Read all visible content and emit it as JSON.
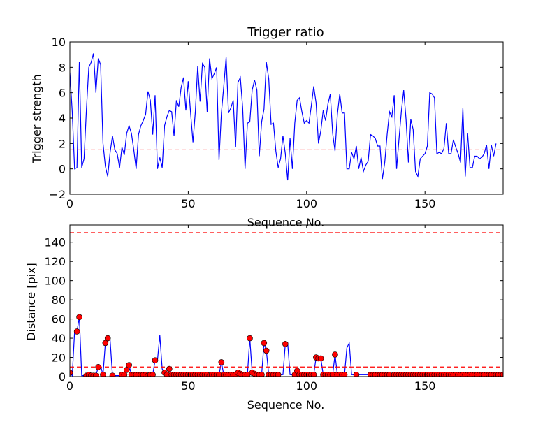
{
  "chart_data": [
    {
      "type": "line",
      "title": "Trigger ratio",
      "xlabel": "Sequence No.",
      "ylabel": "Trigger strength",
      "xlim": [
        0,
        183
      ],
      "ylim": [
        -2,
        10
      ],
      "xticks": [
        0,
        50,
        100,
        150
      ],
      "yticks": [
        -2,
        0,
        2,
        4,
        6,
        8,
        10
      ],
      "line_color": "#0000ff",
      "threshold": {
        "value": 1.5,
        "color": "#ff0000",
        "style": "dashed"
      },
      "x_start": 0,
      "values": [
        7.6,
        4.5,
        0,
        0.1,
        8.4,
        0.1,
        0.8,
        4.7,
        8,
        8.4,
        9.1,
        6,
        8.7,
        8.2,
        2,
        0.2,
        -0.6,
        1.3,
        2.6,
        1.5,
        1.2,
        0.1,
        1.7,
        1.1,
        2.8,
        3.4,
        2.8,
        1.5,
        0,
        2.7,
        3.4,
        3.8,
        4.3,
        6.1,
        5.4,
        2.7,
        5.8,
        0,
        0.9,
        0.1,
        3.4,
        4.1,
        4.6,
        4.5,
        2.6,
        5.4,
        4.9,
        6.4,
        7.2,
        4.6,
        6.9,
        4.4,
        2.1,
        4.5,
        8.1,
        5.3,
        8.3,
        8,
        4.5,
        8.7,
        7.1,
        7.5,
        8,
        0.7,
        4.4,
        6.5,
        8.8,
        4.4,
        4.8,
        5.4,
        1.7,
        6.8,
        7.2,
        4.8,
        0,
        3.6,
        3.7,
        6.2,
        7,
        6.2,
        1,
        3.7,
        4.7,
        8.4,
        7.1,
        3.5,
        3.6,
        1.4,
        0.1,
        0.8,
        2.6,
        1.2,
        -0.9,
        2.4,
        0,
        3.6,
        5.4,
        5.6,
        4.5,
        3.6,
        3.8,
        3.6,
        5,
        6.5,
        5.2,
        2,
        3,
        4.6,
        3.8,
        5.1,
        5.9,
        2.8,
        1.4,
        4.3,
        5.9,
        4.4,
        4.4,
        0,
        0,
        1.3,
        0.8,
        1.8,
        0,
        0.9,
        -0.2,
        0.3,
        0.6,
        2.7,
        2.6,
        2.4,
        1.8,
        1.8,
        -0.8,
        0.5,
        2.7,
        4.5,
        4.1,
        5.8,
        0,
        2.3,
        4.5,
        6.2,
        3.9,
        0.5,
        3.9,
        3.1,
        -0.2,
        -0.6,
        0.8,
        1,
        1.2,
        1.8,
        6,
        5.9,
        5.6,
        1.2,
        1.3,
        1.2,
        1.6,
        3.6,
        1.2,
        1.2,
        2.3,
        1.7,
        1.2,
        0.5,
        4.8,
        -0.6,
        2.8,
        0.1,
        0.1,
        1,
        1,
        0.8,
        0.9,
        1.2,
        1.9,
        0,
        1.9,
        1,
        2
      ]
    },
    {
      "type": "line",
      "xlabel": "Sequence No.",
      "ylabel": "Distance [pix]",
      "xlim": [
        0,
        183
      ],
      "ylim": [
        0,
        158
      ],
      "xticks": [
        0,
        50,
        100,
        150
      ],
      "yticks": [
        0,
        20,
        40,
        60,
        80,
        100,
        120,
        140
      ],
      "line_color": "#0000ff",
      "marker_color": "#ff0000",
      "thresholds": [
        {
          "value": 10,
          "color": "#ff0000",
          "style": "dashed"
        },
        {
          "value": 150,
          "color": "#ff0000",
          "style": "dashed"
        }
      ],
      "x_start": 0,
      "values": [
        4,
        1,
        47,
        47,
        62,
        1,
        1,
        1,
        2,
        1,
        1,
        1,
        10,
        11,
        2,
        35,
        40,
        38,
        1,
        1,
        1,
        1,
        2,
        2,
        7,
        12,
        2,
        2,
        2,
        2,
        2,
        2,
        2,
        1,
        2,
        2,
        17,
        17,
        43,
        8,
        4,
        2,
        8,
        2,
        2,
        2,
        2,
        2,
        2,
        2,
        2,
        2,
        2,
        2,
        2,
        2,
        2,
        2,
        2,
        1,
        2,
        2,
        2,
        2,
        15,
        2,
        2,
        2,
        2,
        2,
        2,
        4,
        3,
        2,
        2,
        2,
        40,
        4,
        3,
        2,
        2,
        2,
        35,
        27,
        2,
        2,
        2,
        2,
        2,
        2,
        2,
        34,
        35,
        2,
        2,
        2,
        6,
        2,
        2,
        2,
        2,
        2,
        2,
        2,
        20,
        19,
        19,
        2,
        2,
        2,
        2,
        2,
        23,
        2,
        2,
        2,
        2,
        30,
        35,
        2,
        2,
        2,
        2,
        2,
        2,
        2,
        2,
        2,
        2,
        2,
        2,
        2,
        2,
        2,
        2,
        2,
        2,
        2,
        2,
        2,
        2,
        2,
        2,
        2,
        2,
        2,
        2,
        2,
        2,
        2,
        2,
        2,
        2,
        2,
        2,
        2,
        2,
        2,
        2,
        2,
        2,
        2,
        2,
        2,
        2,
        2,
        2,
        2,
        2,
        2,
        2,
        2,
        2,
        2,
        2,
        2,
        2,
        2,
        2,
        2,
        2,
        2,
        2,
        2
      ],
      "marker_indices": [
        0,
        3,
        4,
        7,
        8,
        9,
        10,
        11,
        12,
        14,
        15,
        16,
        18,
        22,
        23,
        24,
        25,
        26,
        27,
        28,
        29,
        30,
        31,
        32,
        33,
        34,
        35,
        36,
        40,
        41,
        42,
        43,
        44,
        45,
        46,
        47,
        48,
        49,
        50,
        51,
        52,
        53,
        54,
        55,
        56,
        57,
        58,
        59,
        60,
        61,
        62,
        63,
        64,
        65,
        66,
        67,
        68,
        69,
        70,
        71,
        72,
        73,
        74,
        75,
        76,
        77,
        78,
        79,
        80,
        81,
        82,
        83,
        84,
        85,
        86,
        87,
        88,
        91,
        95,
        96,
        97,
        98,
        99,
        100,
        101,
        102,
        103,
        104,
        105,
        106,
        107,
        108,
        109,
        110,
        111,
        112,
        113,
        114,
        115,
        116,
        121,
        127,
        128,
        129,
        130,
        131,
        132,
        133,
        134,
        135,
        137,
        138,
        139,
        140,
        141,
        142,
        143,
        144,
        145,
        146,
        147,
        148,
        149,
        150,
        151,
        152,
        153,
        154,
        155,
        156,
        157,
        158,
        159,
        160,
        161,
        162,
        163,
        164,
        165,
        166,
        167,
        168,
        169,
        170,
        171,
        172,
        173,
        174,
        175,
        176,
        177,
        178,
        179,
        180,
        181,
        182,
        183
      ]
    }
  ]
}
